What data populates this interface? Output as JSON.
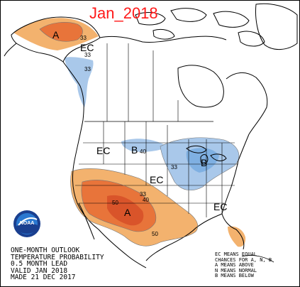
{
  "title": "Jan_2018",
  "colors": {
    "above": "#e8743a",
    "above_strong": "#d9542a",
    "above_light": "#f3b26e",
    "below": "#a9c8ea",
    "below_strong": "#7fb0e2",
    "title": "#ff1a1a"
  },
  "map_labels": {
    "alaska_a": "A",
    "alaska_33": "33",
    "alaska_33b": "33",
    "canada_ec": "EC",
    "canada_33": "33",
    "west_ec": "EC",
    "north_b": "B",
    "north_40": "40",
    "lakes_b": "B",
    "lakes_33": "33",
    "central_ec": "EC",
    "southeast_ec": "EC",
    "south_a": "A",
    "south_50": "50",
    "south_50b": "50",
    "south_33": "33",
    "south_40": "40"
  },
  "caption": {
    "line1": "ONE-MONTH OUTLOOK",
    "line2": "TEMPERATURE PROBABILITY",
    "line3": "0.5 MONTH LEAD",
    "line4": "VALID JAN 2018",
    "line5": "MADE 21 DEC 2017"
  },
  "legend": {
    "line1": "EC MEANS EQUAL",
    "line2": "CHANCES FOR A, N, B",
    "line3": "A MEANS ABOVE",
    "line4": "N MEANS NORMAL",
    "line5": "B MEANS BELOW"
  },
  "logo": {
    "text": "NOAA",
    "icon": "noaa-logo-icon"
  }
}
